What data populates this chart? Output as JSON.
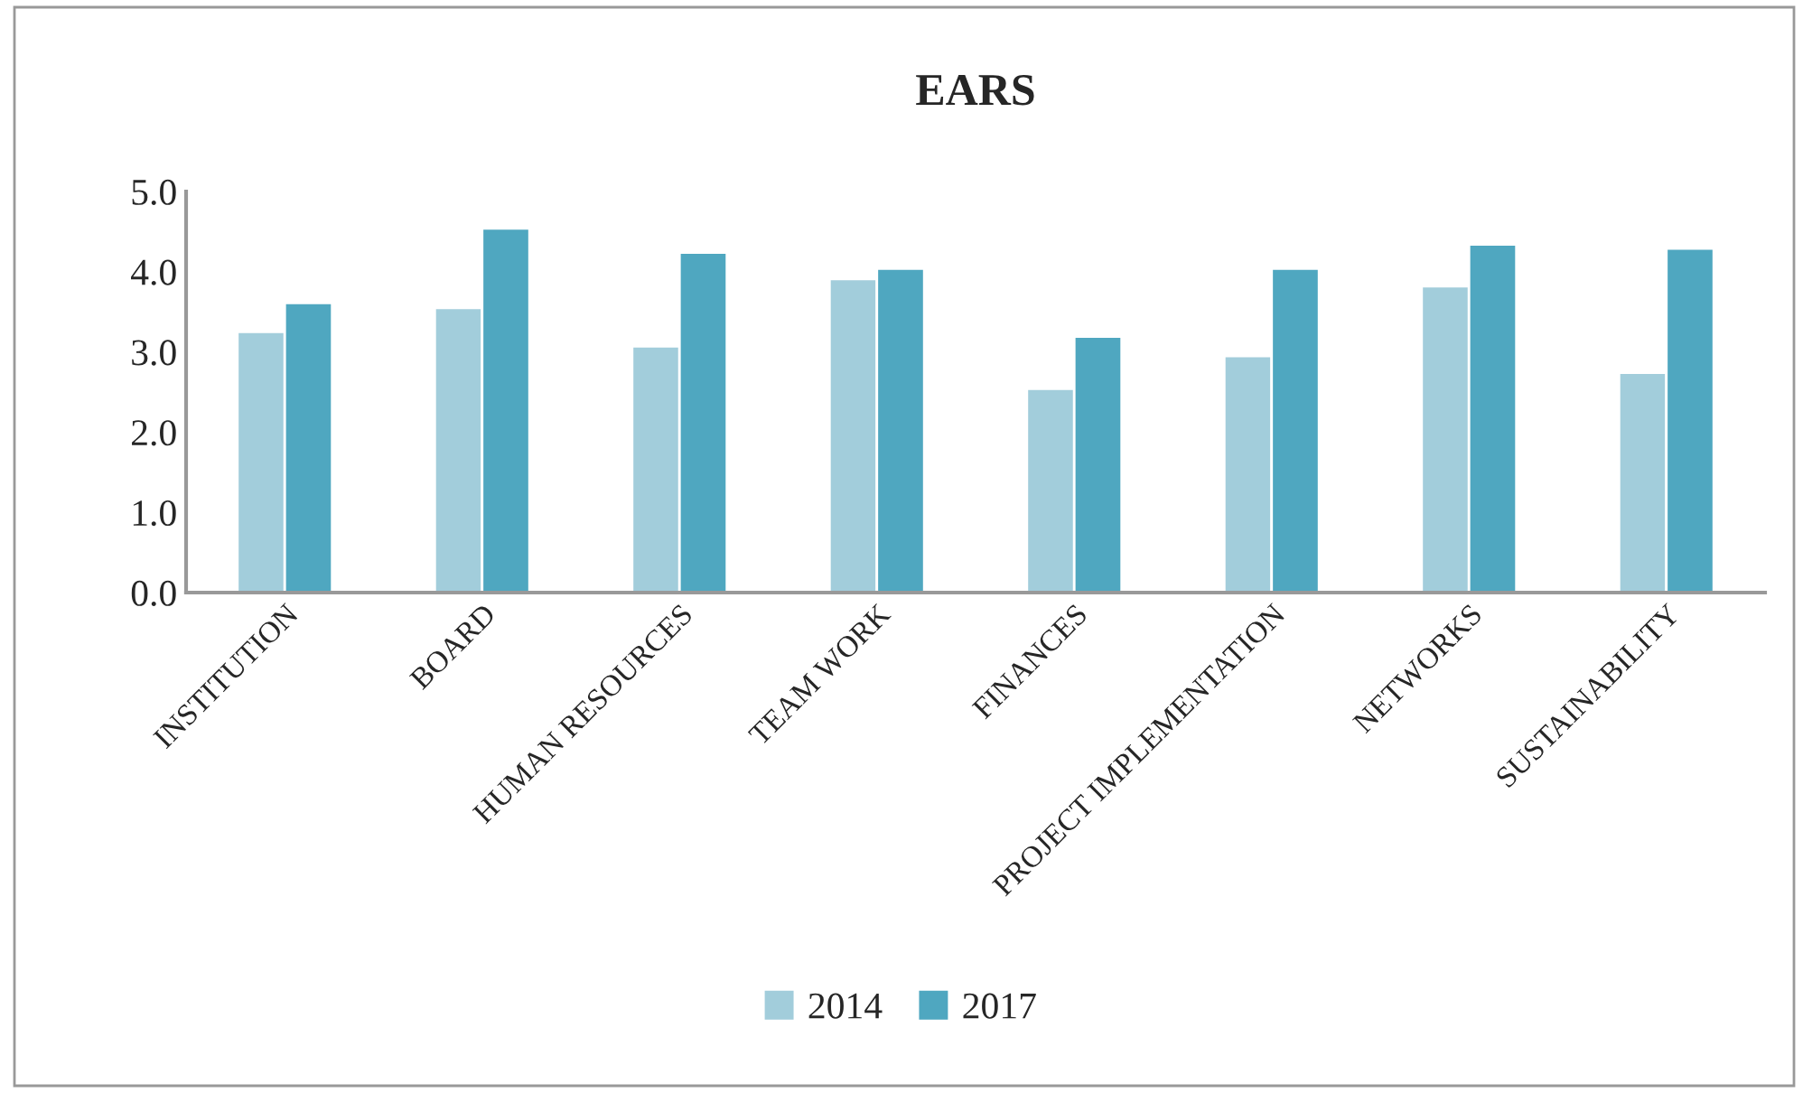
{
  "chart_data": {
    "type": "bar",
    "title": "EARS",
    "categories": [
      "INSTITUTION",
      "BOARD",
      "HUMAN RESOURCES",
      "TEAM WORK",
      "FINANCES",
      "PROJECT IMPLEMENTATION",
      "NETWORKS",
      "SUSTAINABILITY"
    ],
    "series": [
      {
        "name": "2014",
        "color": "#a2cddb",
        "values": [
          3.25,
          3.55,
          3.07,
          3.91,
          2.54,
          2.95,
          3.82,
          2.74
        ]
      },
      {
        "name": "2017",
        "color": "#4fa7c0",
        "values": [
          3.61,
          4.54,
          4.24,
          4.04,
          3.19,
          4.04,
          4.34,
          4.29
        ]
      }
    ],
    "ylim": [
      0,
      5
    ],
    "yticks": [
      {
        "value": 0,
        "label": "0.0"
      },
      {
        "value": 1,
        "label": "1.0"
      },
      {
        "value": 2,
        "label": "2.0"
      },
      {
        "value": 3,
        "label": "3.0"
      },
      {
        "value": 4,
        "label": "4.0"
      },
      {
        "value": 5,
        "label": "5.0"
      }
    ],
    "grid": false,
    "legend": "bottom"
  }
}
